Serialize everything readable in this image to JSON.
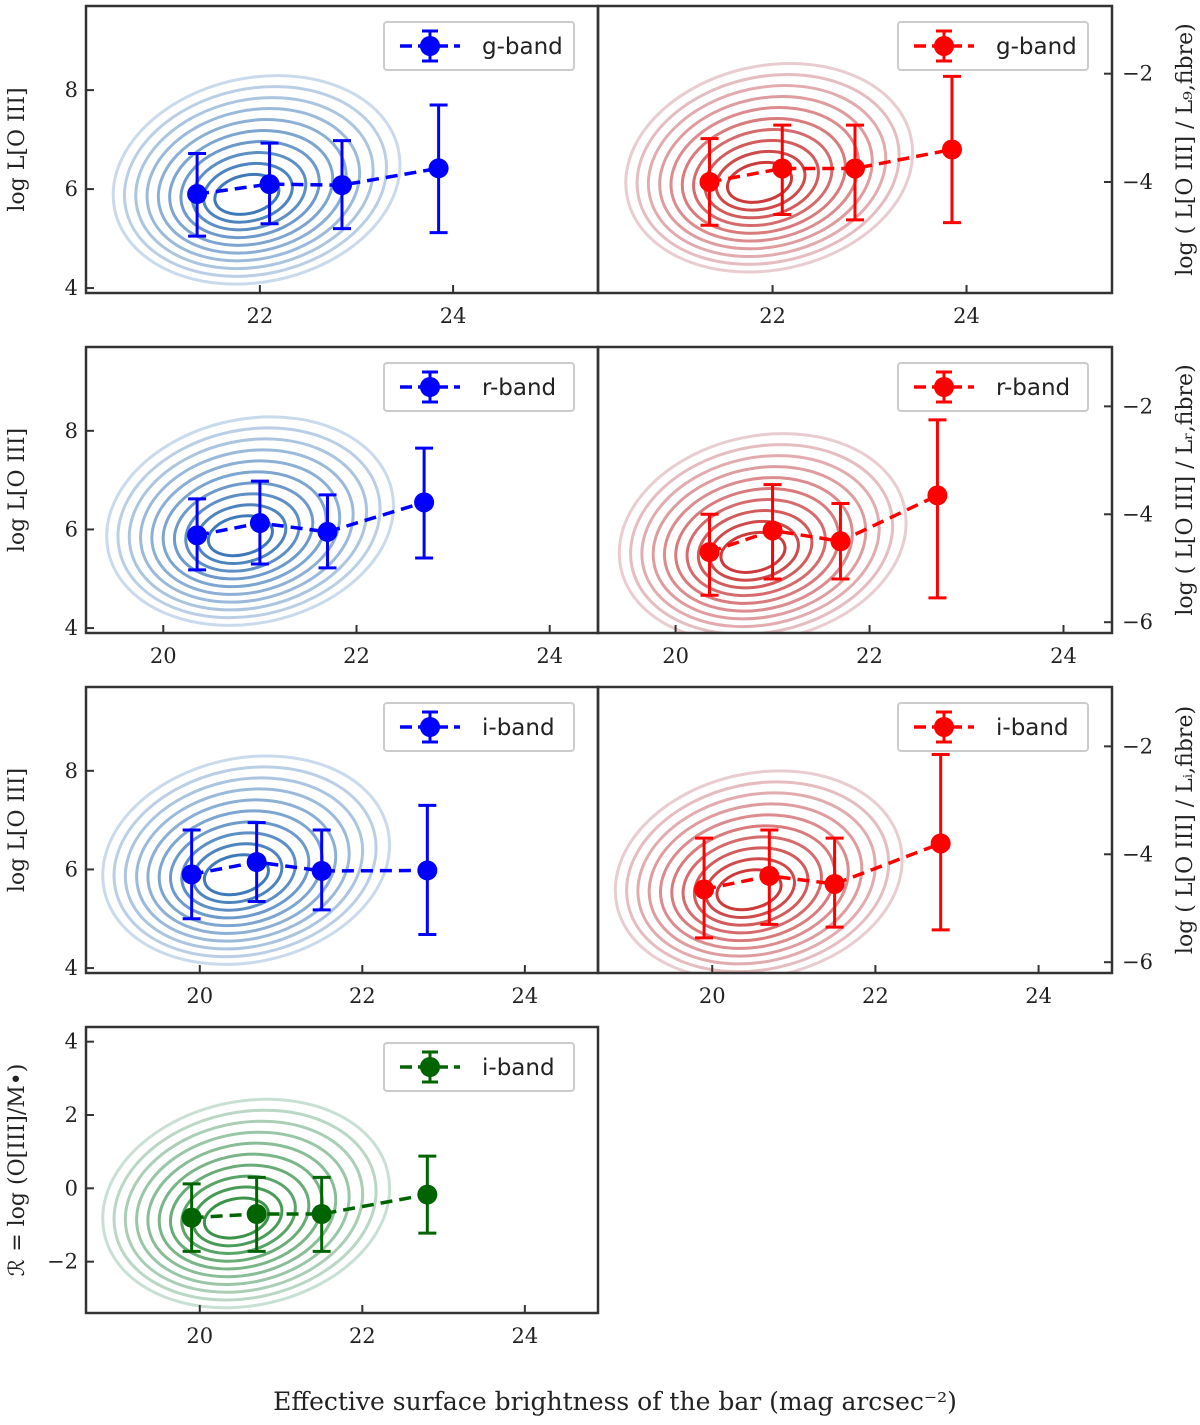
{
  "figure": {
    "xlabel": "Effective surface brightness of the bar (mag arcsec⁻²)"
  },
  "chart_data": [
    {
      "type": "line",
      "panel": "g-left",
      "band": "g-band",
      "color": "#0000ff",
      "contour_color": "#2f6fb3",
      "x": [
        21.35,
        22.1,
        22.85,
        23.85
      ],
      "y": [
        5.9,
        6.1,
        6.08,
        6.42
      ],
      "yerr_low": [
        5.05,
        5.3,
        5.2,
        5.12
      ],
      "yerr_high": [
        6.72,
        6.93,
        6.98,
        7.7
      ],
      "xlim": [
        20.2,
        25.5
      ],
      "ylim": [
        3.9,
        9.7
      ],
      "xticks": [
        22,
        24
      ],
      "yticks": [
        4,
        6,
        8
      ],
      "ylabel": "log L[O III]",
      "legend": "g-band"
    },
    {
      "type": "line",
      "panel": "g-right",
      "band": "g-band",
      "color": "#ff0000",
      "contour_color": "#c92a2a",
      "x": [
        21.35,
        22.1,
        22.85,
        23.85
      ],
      "y": [
        -4.0,
        -3.75,
        -3.75,
        -3.4
      ],
      "yerr_low": [
        -4.8,
        -4.6,
        -4.7,
        -4.75
      ],
      "yerr_high": [
        -3.2,
        -2.95,
        -2.95,
        -2.05
      ],
      "xlim": [
        20.2,
        25.5
      ],
      "ylim": [
        -6.05,
        -0.75
      ],
      "xticks": [
        22,
        24
      ],
      "yticks": [
        -4,
        -2
      ],
      "ylabel": "log ( L[O III] / L₉,fibre)",
      "legend": "g-band"
    },
    {
      "type": "line",
      "panel": "r-left",
      "band": "r-band",
      "color": "#0000ff",
      "contour_color": "#2f6fb3",
      "x": [
        20.35,
        21.0,
        21.7,
        22.7
      ],
      "y": [
        5.88,
        6.13,
        5.95,
        6.55
      ],
      "yerr_low": [
        5.18,
        5.3,
        5.22,
        5.42
      ],
      "yerr_high": [
        6.62,
        6.98,
        6.7,
        7.65
      ],
      "xlim": [
        19.2,
        24.5
      ],
      "ylim": [
        3.9,
        9.7
      ],
      "xticks": [
        20,
        22,
        24
      ],
      "yticks": [
        4,
        6,
        8
      ],
      "ylabel": "log L[O III]",
      "legend": "r-band"
    },
    {
      "type": "line",
      "panel": "r-right",
      "band": "r-band",
      "color": "#ff0000",
      "contour_color": "#c92a2a",
      "x": [
        20.35,
        21.0,
        21.7,
        22.7
      ],
      "y": [
        -4.7,
        -4.3,
        -4.5,
        -3.65
      ],
      "yerr_low": [
        -5.5,
        -5.2,
        -5.2,
        -5.55
      ],
      "yerr_high": [
        -4.0,
        -3.45,
        -3.8,
        -2.25
      ],
      "xlim": [
        19.2,
        24.5
      ],
      "ylim": [
        -6.2,
        -0.9
      ],
      "xticks": [
        20,
        22,
        24
      ],
      "yticks": [
        -6,
        -4,
        -2
      ],
      "ylabel": "log ( L[O III] / Lᵣ,fibre)",
      "legend": "r-band"
    },
    {
      "type": "line",
      "panel": "i-left",
      "band": "i-band",
      "color": "#0000ff",
      "contour_color": "#2f6fb3",
      "x": [
        19.9,
        20.7,
        21.5,
        22.8
      ],
      "y": [
        5.9,
        6.15,
        5.97,
        5.98
      ],
      "yerr_low": [
        5.0,
        5.35,
        5.18,
        4.68
      ],
      "yerr_high": [
        6.8,
        6.95,
        6.8,
        7.3
      ],
      "xlim": [
        18.6,
        24.9
      ],
      "ylim": [
        3.9,
        9.7
      ],
      "xticks": [
        20,
        22,
        24
      ],
      "yticks": [
        4,
        6,
        8
      ],
      "ylabel": "log L[O III]",
      "legend": "i-band"
    },
    {
      "type": "line",
      "panel": "i-right",
      "band": "i-band",
      "color": "#ff0000",
      "contour_color": "#c92a2a",
      "x": [
        19.9,
        20.7,
        21.5,
        22.8
      ],
      "y": [
        -4.65,
        -4.4,
        -4.55,
        -3.8
      ],
      "yerr_low": [
        -5.55,
        -5.3,
        -5.35,
        -5.4
      ],
      "yerr_high": [
        -3.7,
        -3.55,
        -3.7,
        -2.15
      ],
      "xlim": [
        18.6,
        24.9
      ],
      "ylim": [
        -6.2,
        -0.9
      ],
      "xticks": [
        20,
        22,
        24
      ],
      "yticks": [
        -6,
        -4,
        -2
      ],
      "ylabel": "log ( L[O III] / Lᵢ,fibre)",
      "legend": "i-band"
    },
    {
      "type": "line",
      "panel": "R-left",
      "band": "i-band",
      "color": "#006400",
      "contour_color": "#2a8a3a",
      "x": [
        19.9,
        20.7,
        21.5,
        22.8
      ],
      "y": [
        -0.8,
        -0.7,
        -0.7,
        -0.17
      ],
      "yerr_low": [
        -1.72,
        -1.72,
        -1.72,
        -1.22
      ],
      "yerr_high": [
        0.12,
        0.3,
        0.3,
        0.88
      ],
      "xlim": [
        18.6,
        24.9
      ],
      "ylim": [
        -3.4,
        4.4
      ],
      "xticks": [
        20,
        22,
        24
      ],
      "yticks": [
        -2,
        0,
        2,
        4
      ],
      "ylabel": "ℛ = log (O[III]/M•)",
      "legend": "i-band"
    }
  ]
}
